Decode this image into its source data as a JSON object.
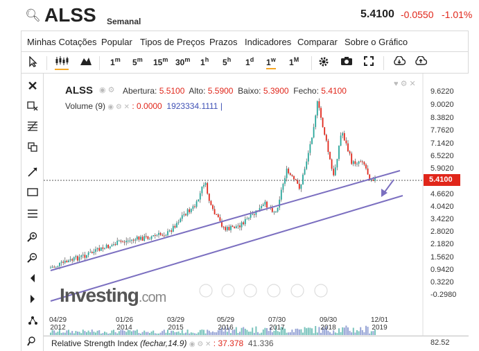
{
  "header": {
    "symbol": "ALSS",
    "period": "Semanal",
    "price": "5.4100",
    "change": "-0.0550",
    "change_pct": "-1.01%"
  },
  "menu": [
    "Minhas Cotações",
    "Popular",
    "Tipos de Preços",
    "Prazos",
    "Indicadores",
    "Comparar",
    "Sobre o Gráfico"
  ],
  "toolbar": {
    "intervals": [
      {
        "n": "1",
        "u": "m"
      },
      {
        "n": "5",
        "u": "m"
      },
      {
        "n": "15",
        "u": "m"
      },
      {
        "n": "30",
        "u": "m"
      },
      {
        "n": "1",
        "u": "h"
      },
      {
        "n": "5",
        "u": "h"
      },
      {
        "n": "1",
        "u": "d"
      },
      {
        "n": "1",
        "u": "w"
      },
      {
        "n": "1",
        "u": "M"
      }
    ]
  },
  "legend": {
    "symbol": "ALSS",
    "open_label": "Abertura:",
    "open": "5.5100",
    "high_label": "Alto:",
    "high": "5.5900",
    "low_label": "Baixo:",
    "low": "5.3900",
    "close_label": "Fecho:",
    "close": "5.4100",
    "volume_label": "Volume (9)",
    "volume_val1": ": 0.0000",
    "volume_val2": "1923334.1111"
  },
  "y_axis": [
    "9.6220",
    "9.0020",
    "8.3820",
    "7.7620",
    "7.1420",
    "6.5220",
    "5.9020",
    "4.6620",
    "4.0420",
    "3.4220",
    "2.8020",
    "2.1820",
    "1.5620",
    "0.9420",
    "0.3220",
    "-0.2980"
  ],
  "current_price_tag": "5.4100",
  "x_axis": [
    {
      "d": "04/29",
      "y": "2012"
    },
    {
      "d": "01/26",
      "y": "2014"
    },
    {
      "d": "03/29",
      "y": "2015"
    },
    {
      "d": "05/29",
      "y": "2016"
    },
    {
      "d": "07/30",
      "y": "2017"
    },
    {
      "d": "09/30",
      "y": "2018"
    },
    {
      "d": "12/01",
      "y": "2019"
    }
  ],
  "rsi": {
    "label": "Relative Strength Index",
    "params": "(fechar,14.9)",
    "val1": ": 37.378",
    "val2": "41.336",
    "axis": "82.52"
  },
  "watermark": {
    "name": "Investing",
    "suffix": ".com"
  },
  "colors": {
    "up": "#26a69a",
    "down": "#e0261a",
    "trend": "#7b6fc0",
    "accent": "#f5a623"
  }
}
